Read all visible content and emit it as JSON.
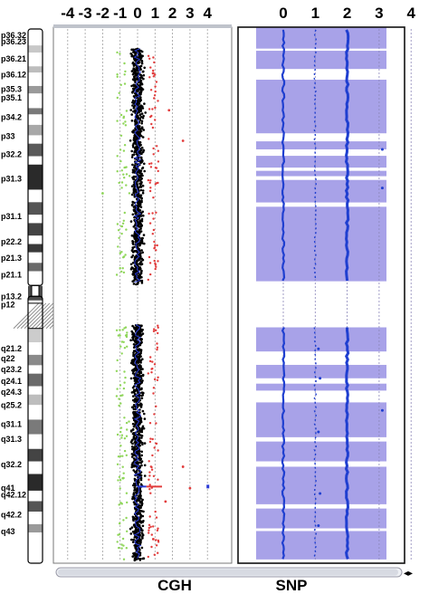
{
  "chart_data": [
    {
      "type": "scatter",
      "panel": "CGH",
      "title": "CGH",
      "x_ticks": [
        "-4",
        "-3",
        "-2",
        "-1",
        "0",
        "1",
        "2",
        "3",
        "4"
      ],
      "xlim": [
        -4,
        4
      ],
      "grid": true,
      "colors": {
        "loss": "#8fd65a",
        "neutral": "#000000",
        "gain": "#e23c3c",
        "trend": "#2a3bd6"
      },
      "arm_ranges": {
        "p": [
          0.04,
          0.48
        ],
        "q": [
          0.555,
          0.995
        ]
      },
      "dispersion": {
        "neutral_sd": 0.22,
        "outlier_range": [
          0.6,
          1.2
        ]
      },
      "outliers": [
        {
          "y": 0.086,
          "x": 0.9
        },
        {
          "y": 0.155,
          "x": 1.8
        },
        {
          "y": 0.212,
          "x": 2.6
        },
        {
          "y": 0.31,
          "x": -2.0
        },
        {
          "y": 0.82,
          "x": 2.6
        },
        {
          "y": 0.86,
          "x": 3.0
        },
        {
          "y": 0.885,
          "x": 1.6
        },
        {
          "y": 0.955,
          "x": 0.9
        }
      ],
      "highlight": {
        "y": 0.857,
        "x_range": [
          0.5,
          1.4
        ]
      }
    },
    {
      "type": "scatter",
      "panel": "SNP",
      "title": "SNP",
      "x_ticks": [
        "0",
        "1",
        "2",
        "3",
        "4"
      ],
      "xlim": [
        0,
        4
      ],
      "grid": true,
      "colors": {
        "shade": "#a8a2e8",
        "dot": "#1f3fd0"
      },
      "bands": [
        [
          0.0,
          0.04
        ],
        [
          0.044,
          0.078
        ],
        [
          0.098,
          0.198
        ],
        [
          0.213,
          0.228
        ],
        [
          0.24,
          0.262
        ],
        [
          0.268,
          0.278
        ],
        [
          0.285,
          0.327
        ],
        [
          0.335,
          0.474
        ],
        [
          0.56,
          0.605
        ],
        [
          0.63,
          0.655
        ],
        [
          0.665,
          0.678
        ],
        [
          0.7,
          0.765
        ],
        [
          0.773,
          0.81
        ],
        [
          0.82,
          0.89
        ],
        [
          0.898,
          0.935
        ],
        [
          0.94,
          0.993
        ]
      ],
      "lines": [
        0,
        1,
        2
      ],
      "p_arm": [
        0.0,
        0.475
      ],
      "q_arm": [
        0.555,
        0.995
      ],
      "extra_dots": [
        {
          "y": 0.228,
          "x": 3.1
        },
        {
          "y": 0.3,
          "x": 3.1
        },
        {
          "y": 0.6,
          "x": 1.1
        },
        {
          "y": 0.655,
          "x": 1.15
        },
        {
          "y": 0.715,
          "x": 3.1
        },
        {
          "y": 0.755,
          "x": 1.1
        },
        {
          "y": 0.87,
          "x": 1.15
        },
        {
          "y": 0.93,
          "x": 1.1
        }
      ]
    }
  ],
  "ideogram": {
    "bands_p": [
      "p36.32",
      "p36.23",
      "p36.21",
      "p36.12",
      "p35.3",
      "p35.1",
      "p34.2",
      "p33",
      "p32.2",
      "p31.3",
      "p31.1",
      "p22.2",
      "p21.3",
      "p21.1",
      "p13.2",
      "p12"
    ],
    "bands_q": [
      "q21.2",
      "q22",
      "q23.2",
      "q24.1",
      "q24.3",
      "q25.2",
      "q31.1",
      "q31.3",
      "q32.2",
      "q41",
      "q42.12",
      "q42.2",
      "q43"
    ],
    "label_y_p": [
      0.0,
      0.015,
      0.056,
      0.094,
      0.129,
      0.149,
      0.196,
      0.241,
      0.285,
      0.343,
      0.433,
      0.494,
      0.533,
      0.573,
      0.625,
      0.644
    ],
    "label_y_q": [
      0.773,
      0.797,
      0.823,
      0.851,
      0.877,
      0.908,
      0.954,
      0.99,
      1.05,
      1.107,
      1.123,
      1.17,
      1.211
    ],
    "stains": [
      [
        0.0,
        0.035,
        "#ffffff"
      ],
      [
        0.035,
        0.052,
        "#c8c8c8"
      ],
      [
        0.052,
        0.085,
        "#ffffff"
      ],
      [
        0.085,
        0.1,
        "#bdbdbd"
      ],
      [
        0.1,
        0.132,
        "#ffffff"
      ],
      [
        0.132,
        0.15,
        "#9a9a9a"
      ],
      [
        0.15,
        0.185,
        "#ffffff"
      ],
      [
        0.185,
        0.2,
        "#7a7a7a"
      ],
      [
        0.2,
        0.225,
        "#ffffff"
      ],
      [
        0.225,
        0.25,
        "#a8a8a8"
      ],
      [
        0.25,
        0.27,
        "#ffffff"
      ],
      [
        0.27,
        0.3,
        "#5a5a5a"
      ],
      [
        0.3,
        0.32,
        "#ffffff"
      ],
      [
        0.32,
        0.38,
        "#2a2a2a"
      ],
      [
        0.38,
        0.41,
        "#ffffff"
      ],
      [
        0.41,
        0.44,
        "#555555"
      ],
      [
        0.44,
        0.46,
        "#ffffff"
      ],
      [
        0.46,
        0.49,
        "#444444"
      ],
      [
        0.49,
        0.51,
        "#ffffff"
      ],
      [
        0.51,
        0.53,
        "#3a3a3a"
      ],
      [
        0.53,
        0.555,
        "#ffffff"
      ],
      [
        0.555,
        0.575,
        "#6a6a6a"
      ],
      [
        0.575,
        0.61,
        "#ffffff"
      ],
      [
        0.61,
        0.645,
        "#4a4a4a"
      ],
      [
        0.645,
        0.7,
        "#ffffff"
      ],
      [
        0.7,
        0.745,
        "#cccccc"
      ],
      [
        0.745,
        0.775,
        "#ffffff"
      ],
      [
        0.775,
        0.8,
        "#8a8a8a"
      ],
      [
        0.8,
        0.82,
        "#ffffff"
      ],
      [
        0.82,
        0.85,
        "#6a6a6a"
      ],
      [
        0.85,
        0.87,
        "#ffffff"
      ],
      [
        0.87,
        0.895,
        "#bdbdbd"
      ],
      [
        0.895,
        0.93,
        "#ffffff"
      ],
      [
        0.93,
        0.965,
        "#7a7a7a"
      ],
      [
        0.965,
        1.0,
        "#ffffff"
      ],
      [
        1.0,
        1.03,
        "#444444"
      ],
      [
        1.03,
        1.06,
        "#ffffff"
      ],
      [
        1.06,
        1.1,
        "#2a2a2a"
      ],
      [
        1.1,
        1.125,
        "#ffffff"
      ],
      [
        1.125,
        1.15,
        "#555555"
      ],
      [
        1.15,
        1.18,
        "#ffffff"
      ],
      [
        1.18,
        1.2,
        "#9a9a9a"
      ],
      [
        1.2,
        1.24,
        "#ffffff"
      ]
    ]
  },
  "scrollbar": {
    "arrows": "◂▸"
  }
}
